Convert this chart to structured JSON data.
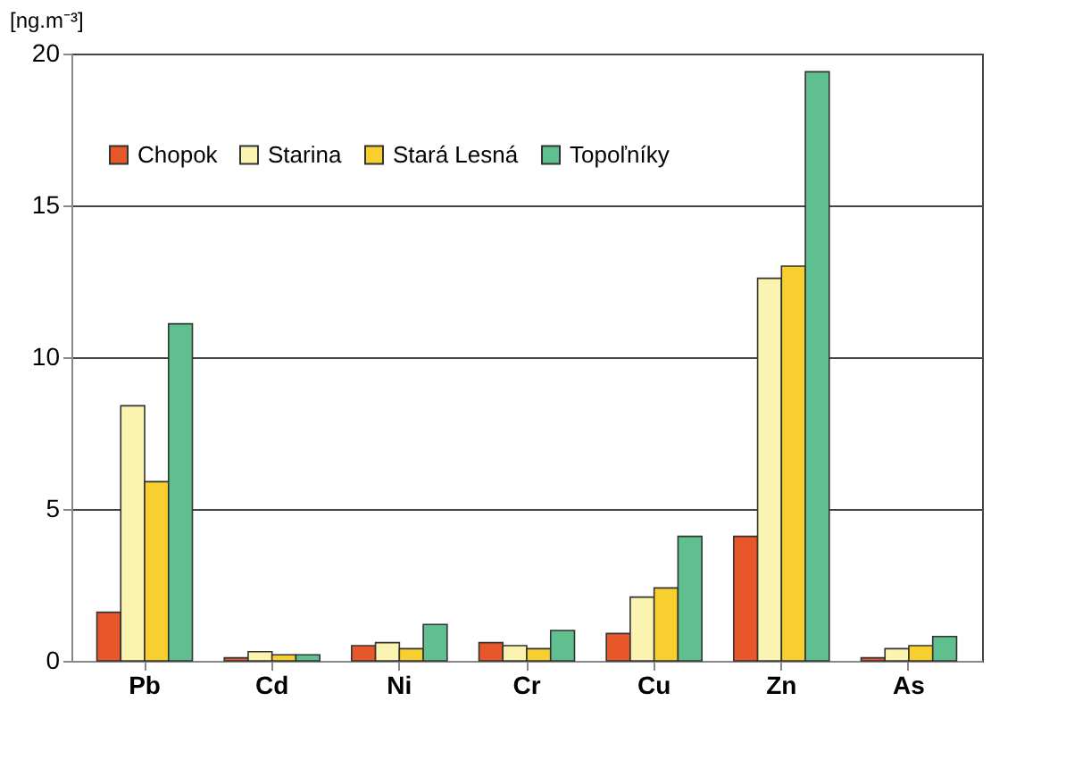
{
  "chart_data": {
    "type": "bar",
    "ylabel": "[ng.m⁻³]",
    "categories": [
      "Pb",
      "Cd",
      "Ni",
      "Cr",
      "Cu",
      "Zn",
      "As"
    ],
    "series": [
      {
        "name": "Chopok",
        "color": "#e8572a",
        "values": [
          1.6,
          0.1,
          0.5,
          0.6,
          0.9,
          4.1,
          0.1
        ]
      },
      {
        "name": "Starina",
        "color": "#fbf4b0",
        "values": [
          8.4,
          0.3,
          0.6,
          0.5,
          2.1,
          12.6,
          0.4
        ]
      },
      {
        "name": "Stará Lesná",
        "color": "#f7cf2e",
        "values": [
          5.9,
          0.2,
          0.4,
          0.4,
          2.4,
          13.0,
          0.5
        ]
      },
      {
        "name": "Topoľníky",
        "color": "#5fbf8f",
        "values": [
          11.1,
          0.2,
          1.2,
          1.0,
          4.1,
          19.4,
          0.8
        ]
      }
    ],
    "ylim": [
      0,
      20
    ],
    "yticks": [
      0,
      5,
      10,
      15,
      20
    ],
    "grid": "y",
    "legend": "top"
  }
}
